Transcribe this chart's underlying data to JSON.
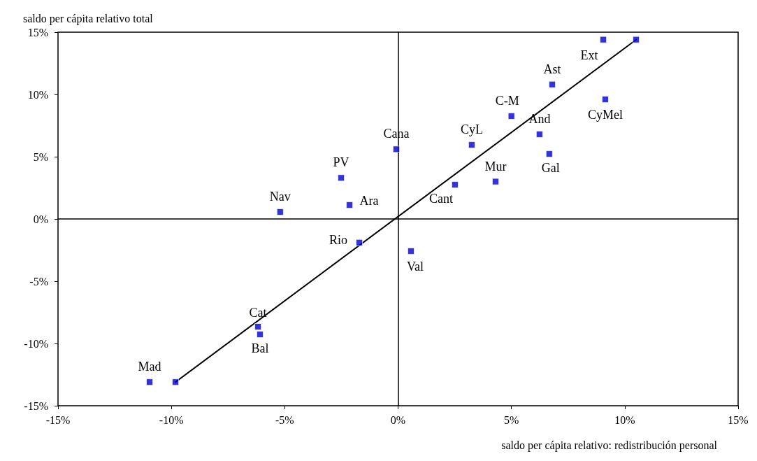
{
  "chart_data": {
    "type": "scatter",
    "xlabel": "saldo per cápita relativo: redistribución personal",
    "ylabel": "saldo per cápita relativo total",
    "series": [
      {
        "color": "#0000cc",
        "x": [
          -10.96,
          -9.82,
          -6.18,
          -6.09,
          -5.2,
          -2.51,
          -2.14,
          -1.71,
          -0.08,
          0.57,
          2.51,
          3.25,
          4.3,
          5.0,
          6.24,
          6.67,
          6.8,
          9.14,
          9.05,
          10.5
        ],
        "values": [
          -13.1,
          -13.1,
          -8.65,
          -9.27,
          0.56,
          3.3,
          1.12,
          -1.9,
          5.6,
          -2.58,
          2.75,
          5.95,
          3.0,
          8.26,
          6.8,
          5.22,
          10.8,
          9.6,
          14.4,
          14.4
        ]
      },
      {
        "type": "line",
        "color": "#000000",
        "marker": "none",
        "line_style": "solid",
        "x": [
          -9.82,
          10.5
        ],
        "values": [
          -13.1,
          14.4
        ]
      }
    ],
    "annotations": [
      {
        "text": "Mad",
        "x": -10.96,
        "y": -13.1
      },
      {
        "text": "Cat",
        "x": -6.18,
        "y": -8.65
      },
      {
        "text": "Bal",
        "x": -6.09,
        "y": -9.27
      },
      {
        "text": "Nav",
        "x": -5.2,
        "y": 0.56
      },
      {
        "text": "PV",
        "x": -2.51,
        "y": 3.3
      },
      {
        "text": "Ara",
        "x": -2.14,
        "y": 1.12
      },
      {
        "text": "Rio",
        "x": -1.71,
        "y": -1.9
      },
      {
        "text": "Cana",
        "x": -0.08,
        "y": 5.6
      },
      {
        "text": "Val",
        "x": 0.57,
        "y": -2.58
      },
      {
        "text": "Cant",
        "x": 2.51,
        "y": 2.75
      },
      {
        "text": "CyL",
        "x": 3.25,
        "y": 5.95
      },
      {
        "text": "Mur",
        "x": 4.3,
        "y": 3.0
      },
      {
        "text": "C-M",
        "x": 5.0,
        "y": 8.26
      },
      {
        "text": "And",
        "x": 6.24,
        "y": 6.8
      },
      {
        "text": "Gal",
        "x": 6.67,
        "y": 5.22
      },
      {
        "text": "Ast",
        "x": 6.8,
        "y": 10.8
      },
      {
        "text": "CyMel",
        "x": 9.14,
        "y": 9.6
      },
      {
        "text": "Ext",
        "x": 9.05,
        "y": 14.4
      }
    ],
    "xlim": [
      -15,
      15
    ],
    "ylim": [
      -15,
      15
    ],
    "xticks": [
      {
        "value": -15,
        "label": "-15%"
      },
      {
        "value": -10,
        "label": "-10%"
      },
      {
        "value": -5,
        "label": "-5%"
      },
      {
        "value": 0,
        "label": "0%"
      },
      {
        "value": 5,
        "label": "5%"
      },
      {
        "value": 10,
        "label": "10%"
      },
      {
        "value": 15,
        "label": "15%"
      }
    ],
    "yticks": [
      {
        "value": -15,
        "label": "-15%"
      },
      {
        "value": -10,
        "label": "-10%"
      },
      {
        "value": -5,
        "label": "-5%"
      },
      {
        "value": 0,
        "label": "0%"
      },
      {
        "value": 5,
        "label": "5%"
      },
      {
        "value": 10,
        "label": "10%"
      },
      {
        "value": 15,
        "label": "15%"
      }
    ],
    "marker": "square"
  }
}
